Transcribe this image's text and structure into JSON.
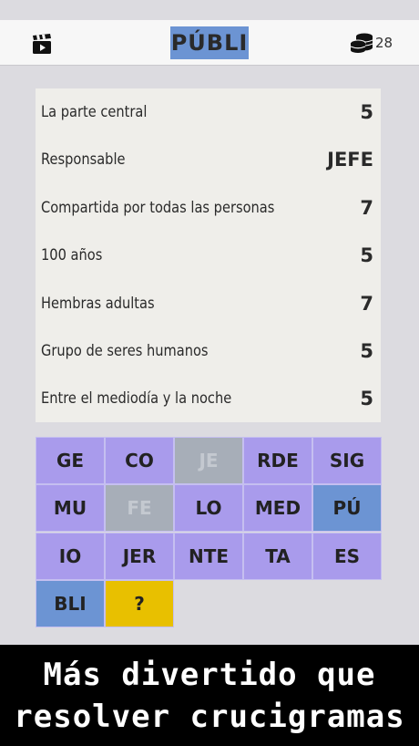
{
  "header": {
    "title": "PÚBLI",
    "coins": "28",
    "left_icon": "clapperboard-icon",
    "right_icon": "coin-stack-icon"
  },
  "clues": [
    {
      "text": "La parte central",
      "answer": "5"
    },
    {
      "text": "Responsable",
      "answer": "JEFE"
    },
    {
      "text": "Compartida por todas las personas",
      "answer": "7"
    },
    {
      "text": "100 años",
      "answer": "5"
    },
    {
      "text": "Hembras adultas",
      "answer": "7"
    },
    {
      "text": "Grupo de seres humanos",
      "answer": "5"
    },
    {
      "text": "Entre el mediodía y la noche",
      "answer": "5"
    }
  ],
  "tiles": [
    {
      "label": "GE",
      "state": "normal"
    },
    {
      "label": "CO",
      "state": "normal"
    },
    {
      "label": "JE",
      "state": "used"
    },
    {
      "label": "RDE",
      "state": "normal"
    },
    {
      "label": "SIG",
      "state": "normal"
    },
    {
      "label": "MU",
      "state": "normal"
    },
    {
      "label": "FE",
      "state": "used"
    },
    {
      "label": "LO",
      "state": "normal"
    },
    {
      "label": "MED",
      "state": "normal"
    },
    {
      "label": "PÚ",
      "state": "selected"
    },
    {
      "label": "IO",
      "state": "normal"
    },
    {
      "label": "JER",
      "state": "normal"
    },
    {
      "label": "NTE",
      "state": "normal"
    },
    {
      "label": "TA",
      "state": "normal"
    },
    {
      "label": "ES",
      "state": "normal"
    },
    {
      "label": "BLI",
      "state": "selected"
    },
    {
      "label": "?",
      "state": "hint"
    }
  ],
  "banner": {
    "line1": "Más divertido que",
    "line2": "resolver crucigramas"
  },
  "colors": {
    "tile": "#a99bec",
    "tile_used": "#a7aeb8",
    "tile_selected": "#6c94d3",
    "hint": "#e8c000"
  }
}
